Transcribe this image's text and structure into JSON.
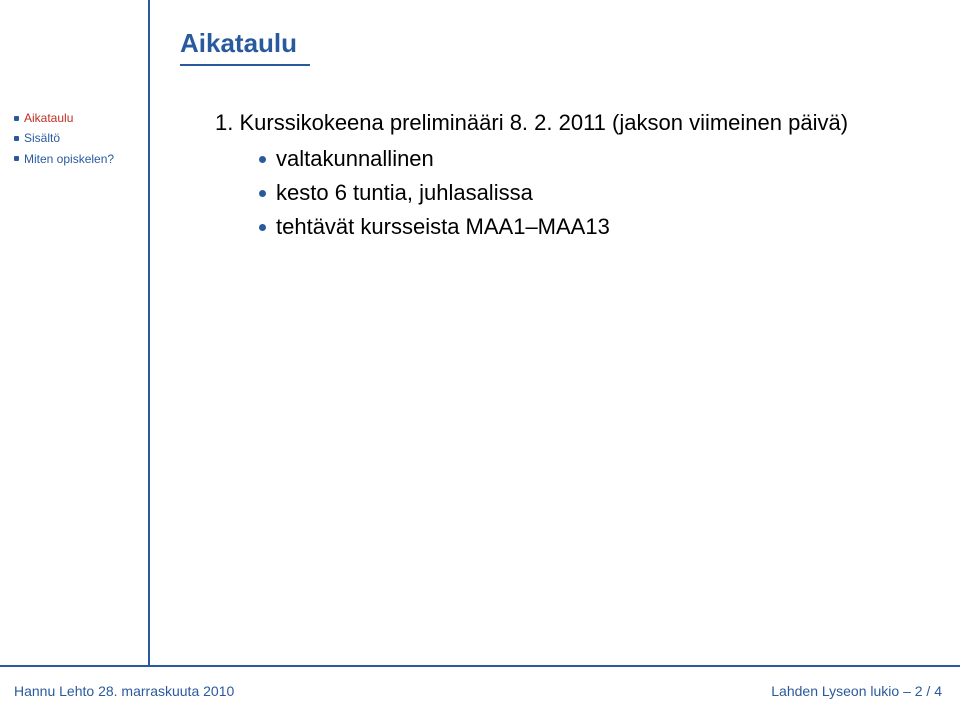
{
  "colors": {
    "accent": "#2a5a9e",
    "active": "#c03020",
    "text": "#000000",
    "background": "#ffffff"
  },
  "title": "Aikataulu",
  "sidebar": {
    "items": [
      {
        "label": "Aikataulu",
        "active": true
      },
      {
        "label": "Sisältö",
        "active": false
      },
      {
        "label": "Miten opiskelen?",
        "active": false
      }
    ]
  },
  "content": {
    "line1": "1.  Kurssikokeena preliminääri 8. 2. 2011 (jakson viimeinen päivä)",
    "bullets": [
      "valtakunnallinen",
      "kesto 6 tuntia, juhlasalissa",
      "tehtävät kursseista MAA1–MAA13"
    ]
  },
  "footer": {
    "left": "Hannu Lehto 28. marraskuuta 2010",
    "right": "Lahden Lyseon lukio – 2 / 4"
  }
}
